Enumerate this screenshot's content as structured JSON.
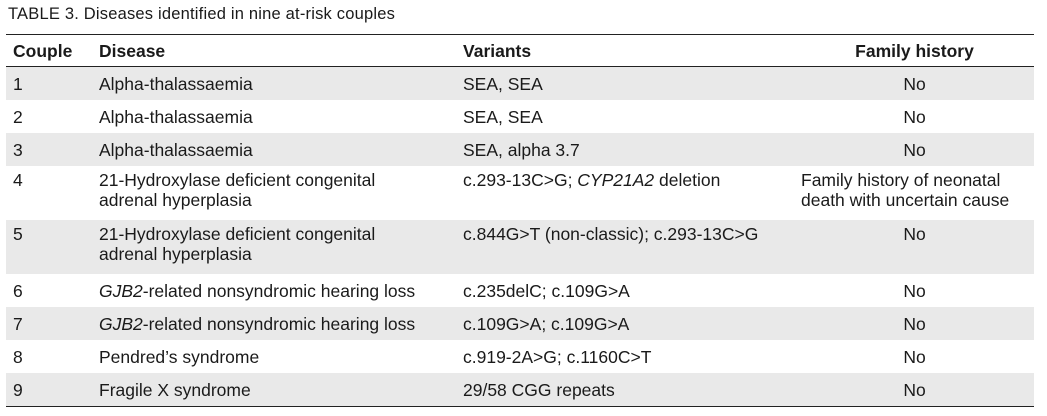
{
  "caption": "TABLE 3.  Diseases identified in nine at-risk couples",
  "headers": {
    "couple": "Couple",
    "disease": "Disease",
    "variants": "Variants",
    "family_history": "Family history"
  },
  "rows": [
    {
      "couple": "1",
      "disease": "Alpha-thalassaemia",
      "variants": "SEA, SEA",
      "family_history": "No"
    },
    {
      "couple": "2",
      "disease": "Alpha-thalassaemia",
      "variants": "SEA, SEA",
      "family_history": "No"
    },
    {
      "couple": "3",
      "disease": "Alpha-thalassaemia",
      "variants": "SEA, alpha 3.7",
      "family_history": "No"
    },
    {
      "couple": "4",
      "disease_line1": "21-Hydroxylase deficient congenital",
      "disease_line2": "adrenal hyperplasia",
      "variants_pre": "c.293-13C>G; ",
      "variants_gene": "CYP21A2",
      "variants_post": " deletion",
      "family_history_line1": "Family history of neonatal",
      "family_history_line2": "death with uncertain cause"
    },
    {
      "couple": "5",
      "disease_line1": "21-Hydroxylase deficient congenital",
      "disease_line2": "adrenal hyperplasia",
      "variants": "c.844G>T (non-classic); c.293-13C>G",
      "family_history": "No"
    },
    {
      "couple": "6",
      "disease_gene": "GJB2",
      "disease_rest": "-related nonsyndromic hearing loss",
      "variants": "c.235delC; c.109G>A",
      "family_history": "No"
    },
    {
      "couple": "7",
      "disease_gene": "GJB2",
      "disease_rest": "-related nonsyndromic hearing loss",
      "variants": "c.109G>A; c.109G>A",
      "family_history": "No"
    },
    {
      "couple": "8",
      "disease": "Pendred’s syndrome",
      "variants": "c.919-2A>G; c.1160C>T",
      "family_history": "No"
    },
    {
      "couple": "9",
      "disease": "Fragile X syndrome",
      "variants": "29/58 CGG repeats",
      "family_history": "No"
    }
  ]
}
